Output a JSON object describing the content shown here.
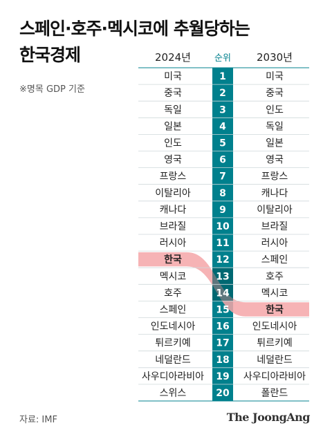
{
  "title_line1": "스페인·호주·멕시코에 추월당하는",
  "title_line2": "한국경제",
  "note": "※명목 GDP 기준",
  "source": "자료: IMF",
  "logo": "The JoongAng",
  "colors": {
    "rank_bar": "#00808d",
    "rank_bar_dark": "#00535c",
    "highlight_band": "#f4a6a8",
    "rule": "#00808d"
  },
  "chart_data": {
    "type": "table",
    "columns": [
      "2024년",
      "순위",
      "2030년"
    ],
    "ranks": [
      1,
      2,
      3,
      4,
      5,
      6,
      7,
      8,
      9,
      10,
      11,
      12,
      13,
      14,
      15,
      16,
      17,
      18,
      19,
      20
    ],
    "left": [
      "미국",
      "중국",
      "독일",
      "일본",
      "인도",
      "영국",
      "프랑스",
      "이탈리아",
      "캐나다",
      "브라질",
      "러시아",
      "한국",
      "멕시코",
      "호주",
      "스페인",
      "인도네시아",
      "튀르키예",
      "네덜란드",
      "사우디아라비아",
      "스위스"
    ],
    "right": [
      "미국",
      "중국",
      "인도",
      "독일",
      "일본",
      "영국",
      "프랑스",
      "캐나다",
      "이탈리아",
      "브라질",
      "러시아",
      "스페인",
      "호주",
      "멕시코",
      "한국",
      "인도네시아",
      "튀르키예",
      "네덜란드",
      "사우디아라비아",
      "폴란드"
    ],
    "highlight": {
      "country": "한국",
      "from_rank": 12,
      "to_rank": 15
    }
  }
}
